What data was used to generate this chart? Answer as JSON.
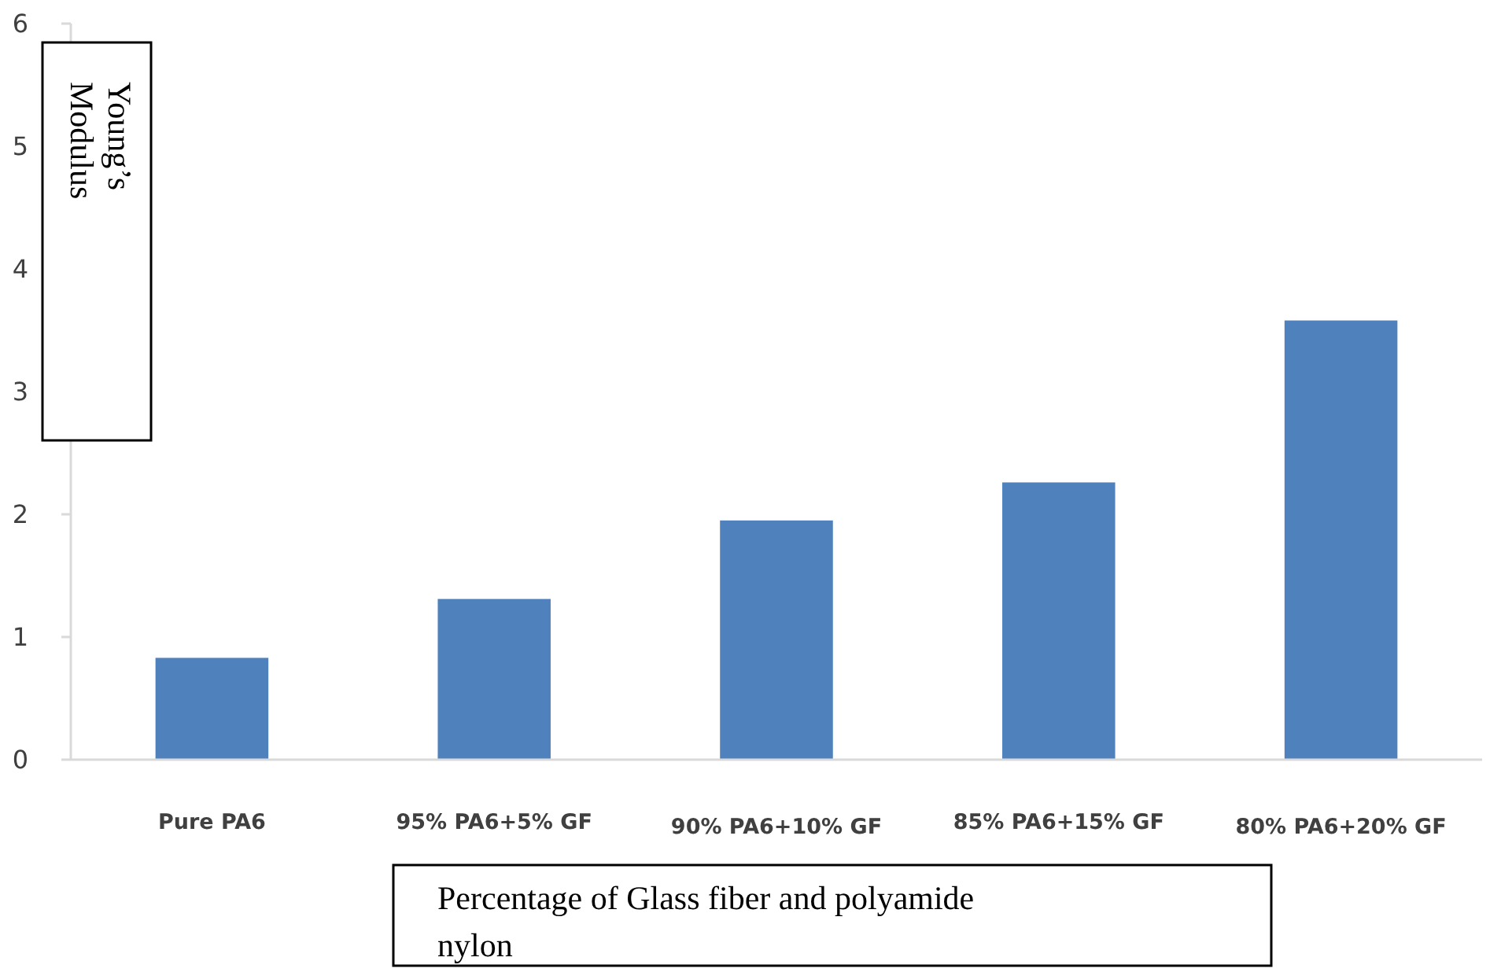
{
  "chart_data": {
    "type": "bar",
    "xlabel": "Percentage of Glass fiber and polyamide nylon",
    "ylabel": "Young’s Modulus",
    "categories": [
      "Pure PA6",
      "95% PA6+5% GF",
      "90% PA6+10% GF",
      "85% PA6+15% GF",
      "80% PA6+20% GF"
    ],
    "values": [
      0.83,
      1.31,
      1.95,
      2.26,
      3.58
    ],
    "color": "#4f81bd",
    "ylim": [
      0,
      6
    ],
    "yticks": [
      0,
      1,
      2,
      3,
      4,
      5,
      6
    ],
    "grid": false
  }
}
